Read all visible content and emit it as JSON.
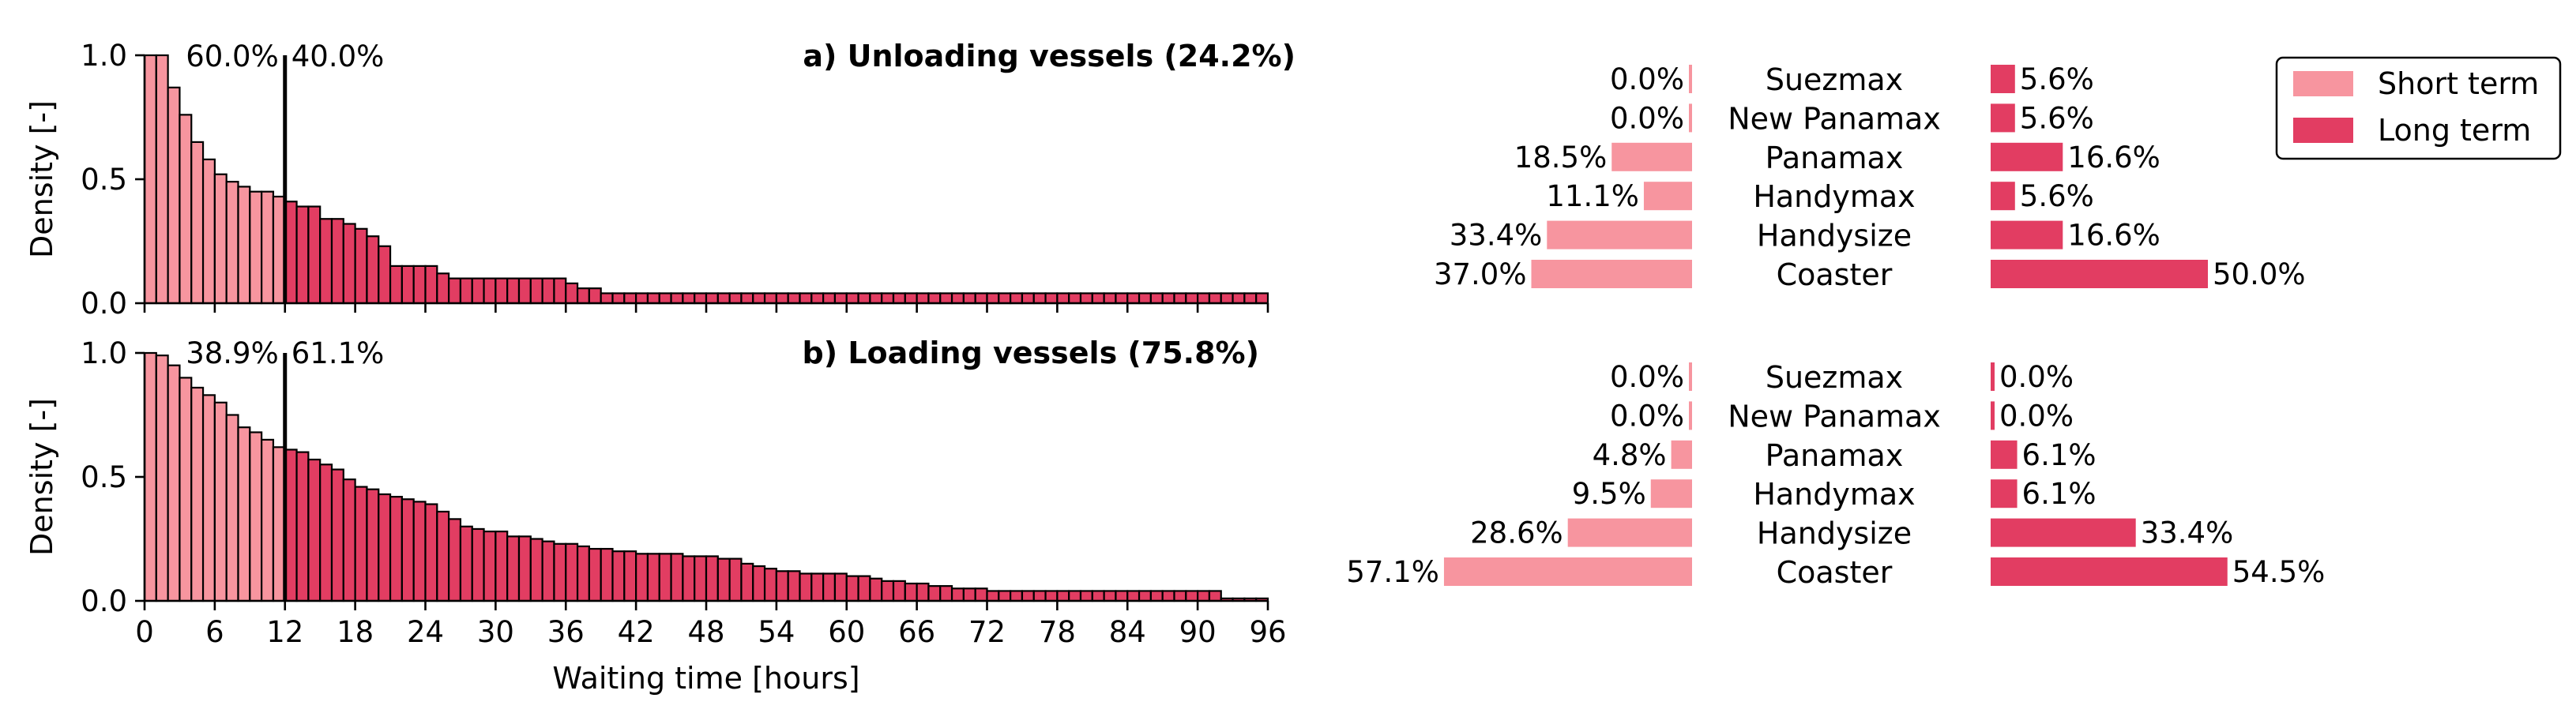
{
  "colors": {
    "short_term": "#f7959f",
    "long_term": "#e23d62",
    "edge": "#000000"
  },
  "x_axis": {
    "label": "Waiting time [hours]",
    "ticks": [
      "0",
      "6",
      "12",
      "18",
      "24",
      "30",
      "36",
      "42",
      "48",
      "54",
      "60",
      "66",
      "72",
      "78",
      "84",
      "90",
      "96"
    ]
  },
  "chart_data": [
    {
      "type": "bar",
      "title": "a) Unloading vessels (24.2%)",
      "ylabel": "Density [-]",
      "ylim": [
        0,
        1.0
      ],
      "xlim": [
        0,
        96
      ],
      "yticks": [
        "0.0",
        "0.5",
        "1.0"
      ],
      "threshold_hours": 12,
      "share_labels": {
        "short": "60.0%",
        "long": "40.0%"
      },
      "bin_width_hours": 1,
      "densities": [
        1.0,
        1.0,
        0.87,
        0.76,
        0.65,
        0.58,
        0.52,
        0.49,
        0.47,
        0.45,
        0.45,
        0.43,
        0.41,
        0.39,
        0.39,
        0.34,
        0.34,
        0.32,
        0.3,
        0.27,
        0.23,
        0.15,
        0.15,
        0.15,
        0.15,
        0.12,
        0.1,
        0.1,
        0.1,
        0.1,
        0.1,
        0.1,
        0.1,
        0.1,
        0.1,
        0.1,
        0.08,
        0.06,
        0.06,
        0.04,
        0.04,
        0.04,
        0.04,
        0.04,
        0.04,
        0.04,
        0.04,
        0.04,
        0.04,
        0.04,
        0.04,
        0.04,
        0.04,
        0.04,
        0.04,
        0.04,
        0.04,
        0.04,
        0.04,
        0.04,
        0.04,
        0.04,
        0.04,
        0.04,
        0.04,
        0.04,
        0.04,
        0.04,
        0.04,
        0.04,
        0.04,
        0.04,
        0.04,
        0.04,
        0.04,
        0.04,
        0.04,
        0.04,
        0.04,
        0.04,
        0.04,
        0.04,
        0.04,
        0.04,
        0.04,
        0.04,
        0.04,
        0.04,
        0.04,
        0.04,
        0.04,
        0.04,
        0.04,
        0.04,
        0.04,
        0.04
      ]
    },
    {
      "type": "bar",
      "title": "b) Loading vessels (75.8%)",
      "ylabel": "Density [-]",
      "ylim": [
        0,
        1.0
      ],
      "xlim": [
        0,
        96
      ],
      "yticks": [
        "0.0",
        "0.5",
        "1.0"
      ],
      "threshold_hours": 12,
      "share_labels": {
        "short": "38.9%",
        "long": "61.1%"
      },
      "bin_width_hours": 1,
      "densities": [
        1.0,
        0.99,
        0.95,
        0.9,
        0.86,
        0.83,
        0.8,
        0.75,
        0.7,
        0.68,
        0.65,
        0.62,
        0.61,
        0.6,
        0.57,
        0.55,
        0.53,
        0.49,
        0.46,
        0.45,
        0.43,
        0.42,
        0.41,
        0.4,
        0.39,
        0.36,
        0.33,
        0.3,
        0.29,
        0.28,
        0.28,
        0.26,
        0.26,
        0.25,
        0.24,
        0.23,
        0.23,
        0.22,
        0.21,
        0.21,
        0.2,
        0.2,
        0.19,
        0.19,
        0.19,
        0.19,
        0.18,
        0.18,
        0.18,
        0.17,
        0.17,
        0.15,
        0.14,
        0.13,
        0.12,
        0.12,
        0.11,
        0.11,
        0.11,
        0.11,
        0.1,
        0.1,
        0.09,
        0.08,
        0.08,
        0.07,
        0.07,
        0.06,
        0.06,
        0.05,
        0.05,
        0.05,
        0.04,
        0.04,
        0.04,
        0.04,
        0.04,
        0.04,
        0.04,
        0.04,
        0.04,
        0.04,
        0.04,
        0.04,
        0.04,
        0.04,
        0.04,
        0.04,
        0.04,
        0.04,
        0.04,
        0.04,
        0.01,
        0.01,
        0.01,
        0.01
      ]
    },
    {
      "type": "bar",
      "orientation": "horizontal",
      "categories": [
        "Suezmax",
        "New Panamax",
        "Panamax",
        "Handymax",
        "Handysize",
        "Coaster"
      ],
      "series": [
        {
          "name": "Short term",
          "values": [
            0.0,
            0.0,
            18.5,
            11.1,
            33.4,
            37.0
          ],
          "labels": [
            "0.0%",
            "0.0%",
            "18.5%",
            "11.1%",
            "33.4%",
            "37.0%"
          ]
        },
        {
          "name": "Long term",
          "values": [
            5.6,
            5.6,
            16.6,
            5.6,
            16.6,
            50.0
          ],
          "labels": [
            "5.6%",
            "5.6%",
            "16.6%",
            "5.6%",
            "16.6%",
            "50.0%"
          ]
        }
      ]
    },
    {
      "type": "bar",
      "orientation": "horizontal",
      "categories": [
        "Suezmax",
        "New Panamax",
        "Panamax",
        "Handymax",
        "Handysize",
        "Coaster"
      ],
      "series": [
        {
          "name": "Short term",
          "values": [
            0.0,
            0.0,
            4.8,
            9.5,
            28.6,
            57.1
          ],
          "labels": [
            "0.0%",
            "0.0%",
            "4.8%",
            "9.5%",
            "28.6%",
            "57.1%"
          ]
        },
        {
          "name": "Long term",
          "values": [
            0.0,
            0.0,
            6.1,
            6.1,
            33.4,
            54.5
          ],
          "labels": [
            "0.0%",
            "0.0%",
            "6.1%",
            "6.1%",
            "33.4%",
            "54.5%"
          ]
        }
      ]
    }
  ],
  "legend": {
    "placement": "top-right",
    "entries": [
      "Short term",
      "Long term"
    ]
  }
}
